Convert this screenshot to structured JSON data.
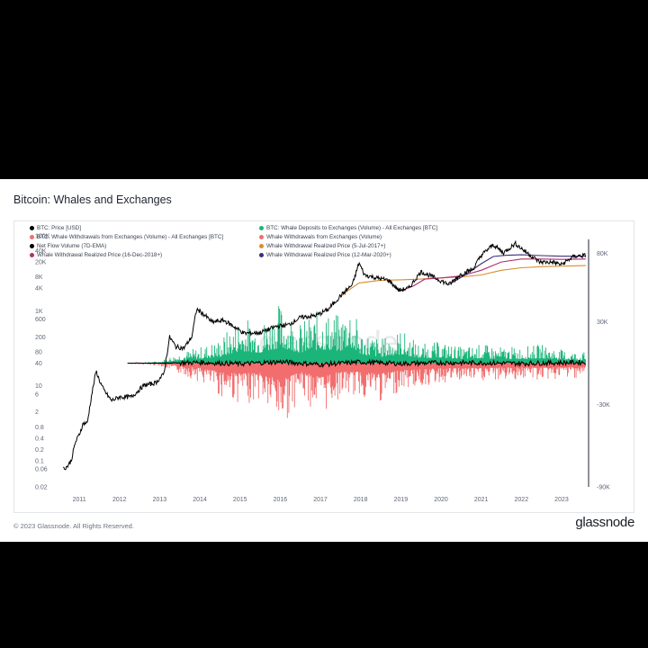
{
  "title": "Bitcoin: Whales and Exchanges",
  "footer": {
    "copyright": "© 2023 Glassnode. All Rights Reserved.",
    "brand": "glassnode"
  },
  "watermark": "glassnode",
  "chart_data": {
    "type": "line",
    "title": "Bitcoin: Whales and Exchanges",
    "legend_placement": "top",
    "legend": [
      {
        "label": "BTC: Price [USD]",
        "color": "#000000"
      },
      {
        "label": "BTC: Whale Deposits to Exchanges (Volume) - All Exchanges [BTC]",
        "color": "#1bb57a"
      },
      {
        "label": "BTC: Whale Withdrawals from Exchanges (Volume) - All Exchanges [BTC]",
        "color": "#f26d6d"
      },
      {
        "label": "Whale Withdrawals from Exchanges (Volume)",
        "color": "#f26d6d"
      },
      {
        "label": "Net Flow Volume (7D-EMA)",
        "color": "#000000"
      },
      {
        "label": "Whale Withdrawal Realized Price (5-Jul-2017+)",
        "color": "#d98c2b"
      },
      {
        "label": "Whale Withdrawal Realized Price (16-Dec-2018+)",
        "color": "#b0306e"
      },
      {
        "label": "Whale Withdrawal Realized Price (12-Mar-2020+)",
        "color": "#3a2f7a"
      }
    ],
    "x_axis": {
      "ticks": [
        "2011",
        "2012",
        "2013",
        "2014",
        "2015",
        "2016",
        "2017",
        "2018",
        "2019",
        "2020",
        "2021",
        "2022",
        "2023"
      ],
      "range": [
        2010.55,
        2023.65
      ]
    },
    "y_left": {
      "scale": "log",
      "range": [
        0.02,
        80000
      ],
      "ticks": [
        "0.02",
        "0.06",
        "0.1",
        "0.2",
        "0.4",
        "0.8",
        "2",
        "6",
        "10",
        "40",
        "80",
        "200",
        "600",
        "1K",
        "4K",
        "8K",
        "20K",
        "40K",
        "100K"
      ]
    },
    "y_right": {
      "scale": "linear",
      "range": [
        -90000,
        90000
      ],
      "ticks": [
        "80K",
        "30K",
        "-30K",
        "-90K"
      ]
    },
    "series": [
      {
        "name": "BTC: Price [USD]",
        "axis": "left",
        "x": [
          2010.6,
          2010.7,
          2010.8,
          2010.9,
          2011.0,
          2011.1,
          2011.2,
          2011.3,
          2011.42,
          2011.5,
          2011.6,
          2011.8,
          2012.0,
          2012.3,
          2012.6,
          2012.9,
          2013.1,
          2013.25,
          2013.4,
          2013.6,
          2013.8,
          2013.92,
          2014.1,
          2014.3,
          2014.6,
          2014.9,
          2015.1,
          2015.5,
          2015.9,
          2016.2,
          2016.5,
          2016.9,
          2017.2,
          2017.5,
          2017.8,
          2017.96,
          2018.1,
          2018.4,
          2018.7,
          2018.95,
          2019.2,
          2019.5,
          2019.8,
          2020.2,
          2020.5,
          2020.8,
          2021.0,
          2021.3,
          2021.55,
          2021.85,
          2022.1,
          2022.45,
          2022.8,
          2023.0,
          2023.3,
          2023.6
        ],
        "values": [
          0.06,
          0.07,
          0.1,
          0.3,
          0.5,
          1,
          1,
          5,
          25,
          14,
          8,
          4,
          5,
          5,
          10,
          12,
          20,
          200,
          110,
          100,
          200,
          1100,
          800,
          500,
          550,
          350,
          250,
          260,
          380,
          420,
          660,
          750,
          1100,
          2500,
          5000,
          19000,
          9000,
          7500,
          6500,
          3500,
          4000,
          11000,
          8000,
          5000,
          9500,
          13000,
          30000,
          58000,
          35000,
          62000,
          38000,
          20000,
          19500,
          17000,
          28000,
          30000
        ]
      },
      {
        "name": "Whale Withdrawal Realized Price (5-Jul-2017+)",
        "axis": "left",
        "x": [
          2017.5,
          2017.96,
          2018.5,
          2019.0,
          2019.5,
          2020.0,
          2020.5,
          2021.0,
          2021.5,
          2022.0,
          2022.5,
          2023.0,
          2023.6
        ],
        "values": [
          2500,
          5500,
          6500,
          6700,
          7000,
          7500,
          8000,
          9000,
          12000,
          14000,
          15000,
          15500,
          16000
        ]
      },
      {
        "name": "Whale Withdrawal Realized Price (16-Dec-2018+)",
        "axis": "left",
        "x": [
          2018.96,
          2019.3,
          2019.6,
          2020.0,
          2020.5,
          2021.0,
          2021.5,
          2022.0,
          2022.5,
          2023.0,
          2023.6
        ],
        "values": [
          3300,
          4500,
          7000,
          7500,
          8500,
          12000,
          20000,
          24000,
          24000,
          23500,
          24000
        ]
      },
      {
        "name": "Whale Withdrawal Realized Price (12-Mar-2020+)",
        "axis": "left",
        "x": [
          2020.2,
          2020.6,
          2021.0,
          2021.3,
          2021.6,
          2022.0,
          2022.5,
          2023.0,
          2023.6
        ],
        "values": [
          5000,
          9000,
          18000,
          28000,
          30000,
          31000,
          29500,
          28500,
          28500
        ]
      },
      {
        "name": "Whale Deposits to Exchanges (Volume) - envelope",
        "axis": "right",
        "x": [
          2012.2,
          2013.0,
          2013.5,
          2014.0,
          2014.5,
          2015.0,
          2015.5,
          2016.0,
          2016.5,
          2017.0,
          2017.5,
          2017.7,
          2018.0,
          2018.5,
          2019.0,
          2019.5,
          2020.0,
          2020.5,
          2021.0,
          2021.5,
          2022.0,
          2022.5,
          2023.0,
          2023.6
        ],
        "values": [
          200,
          1500,
          8000,
          12000,
          18000,
          35000,
          30000,
          45000,
          30000,
          40000,
          35000,
          50000,
          25000,
          18000,
          25000,
          14000,
          16000,
          12000,
          14000,
          12000,
          12000,
          14000,
          10000,
          8000
        ]
      },
      {
        "name": "Whale Withdrawals from Exchanges (Volume) - envelope",
        "axis": "right",
        "x": [
          2012.2,
          2013.0,
          2013.5,
          2014.0,
          2014.5,
          2015.0,
          2015.5,
          2016.0,
          2016.5,
          2017.0,
          2017.5,
          2018.0,
          2018.5,
          2019.0,
          2019.5,
          2020.0,
          2020.5,
          2021.0,
          2021.5,
          2022.0,
          2022.5,
          2023.0,
          2023.6
        ],
        "values": [
          -200,
          -2000,
          -8000,
          -14000,
          -25000,
          -30000,
          -28000,
          -50000,
          -25000,
          -40000,
          -25000,
          -25000,
          -30000,
          -20000,
          -18000,
          -15000,
          -14000,
          -14000,
          -13000,
          -12000,
          -13000,
          -12000,
          -10000
        ]
      },
      {
        "name": "Net Flow Volume (7D-EMA)",
        "axis": "right",
        "x": [
          2012.2,
          2013.0,
          2014.0,
          2015.0,
          2016.0,
          2017.0,
          2018.0,
          2019.0,
          2020.0,
          2021.0,
          2022.0,
          2023.0,
          2023.6
        ],
        "values": [
          0,
          0,
          500,
          -500,
          1000,
          -1000,
          800,
          -300,
          300,
          200,
          -200,
          300,
          600
        ]
      }
    ]
  }
}
